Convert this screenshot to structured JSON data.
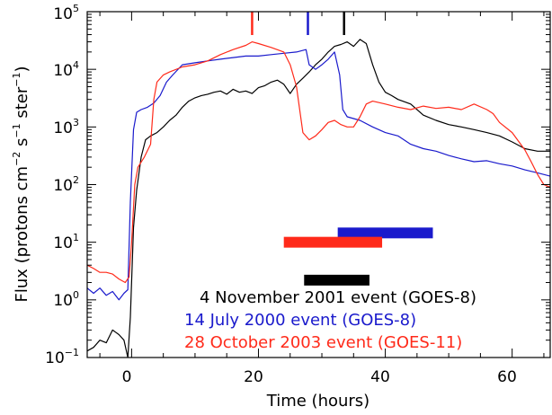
{
  "chart_data": {
    "type": "line",
    "title": "",
    "xlabel": "Time (hours)",
    "ylabel": "Flux (protons cm⁻² s⁻¹ ster⁻¹)",
    "ylabel_parts": {
      "flux": "Flux (protons cm",
      "e1": "−2",
      "s": " s",
      "e2": "−1",
      "ster": " ster",
      "e3": "−1",
      "close": ")"
    },
    "xlim": [
      -7,
      66
    ],
    "ylim": [
      0.1,
      100000
    ],
    "yscale": "log",
    "x_ticks": [
      0,
      20,
      40,
      60
    ],
    "x_tick_labels": [
      "0",
      "20",
      "40",
      "60"
    ],
    "y_ticks": [
      0.1,
      1,
      10,
      100,
      1000,
      10000,
      100000
    ],
    "y_tick_labels": [
      {
        "base": "10",
        "exp": "−1"
      },
      {
        "base": "10",
        "exp": "0"
      },
      {
        "base": "10",
        "exp": "1"
      },
      {
        "base": "10",
        "exp": "2"
      },
      {
        "base": "10",
        "exp": "3"
      },
      {
        "base": "10",
        "exp": "4"
      },
      {
        "base": "10",
        "exp": "5"
      }
    ],
    "legend_placement": "bottom-right",
    "legend": [
      {
        "text": "4 November 2001 event (GOES-8)",
        "color": "#000000"
      },
      {
        "text": "14 July 2000 event (GOES-8)",
        "color": "#1a1acc"
      },
      {
        "text": "28 October 2003 event (GOES-11)",
        "color": "#ff2a1a"
      }
    ],
    "series": [
      {
        "color": "#000000",
        "points": [
          [
            -7,
            0.13
          ],
          [
            -6,
            0.15
          ],
          [
            -5,
            0.2
          ],
          [
            -4,
            0.18
          ],
          [
            -3,
            0.3
          ],
          [
            -2,
            0.25
          ],
          [
            -1.2,
            0.2
          ],
          [
            -0.6,
            0.1
          ],
          [
            -0.2,
            0.5
          ],
          [
            0.3,
            18
          ],
          [
            0.8,
            80
          ],
          [
            1.5,
            300
          ],
          [
            2.2,
            600
          ],
          [
            3,
            700
          ],
          [
            4,
            800
          ],
          [
            5,
            1000
          ],
          [
            6,
            1300
          ],
          [
            7,
            1600
          ],
          [
            8,
            2200
          ],
          [
            9,
            2800
          ],
          [
            10,
            3200
          ],
          [
            11,
            3500
          ],
          [
            12,
            3700
          ],
          [
            13,
            4000
          ],
          [
            14,
            4200
          ],
          [
            15,
            3700
          ],
          [
            16,
            4500
          ],
          [
            17,
            4000
          ],
          [
            18,
            4200
          ],
          [
            19,
            3800
          ],
          [
            20,
            4800
          ],
          [
            21,
            5200
          ],
          [
            22,
            6000
          ],
          [
            23,
            6500
          ],
          [
            24,
            5500
          ],
          [
            25,
            3800
          ],
          [
            26,
            5500
          ],
          [
            27,
            7000
          ],
          [
            28,
            9000
          ],
          [
            29,
            12000
          ],
          [
            30,
            15000
          ],
          [
            31,
            20000
          ],
          [
            32,
            25000
          ],
          [
            33,
            27000
          ],
          [
            34,
            30000
          ],
          [
            35,
            25000
          ],
          [
            36,
            33000
          ],
          [
            37,
            28000
          ],
          [
            38,
            12000
          ],
          [
            39,
            6000
          ],
          [
            40,
            4000
          ],
          [
            41,
            3500
          ],
          [
            42,
            3000
          ],
          [
            44,
            2500
          ],
          [
            46,
            1600
          ],
          [
            48,
            1300
          ],
          [
            50,
            1100
          ],
          [
            52,
            1000
          ],
          [
            54,
            900
          ],
          [
            56,
            800
          ],
          [
            58,
            700
          ],
          [
            60,
            550
          ],
          [
            62,
            420
          ],
          [
            64,
            380
          ],
          [
            66,
            380
          ]
        ]
      },
      {
        "color": "#1a1acc",
        "points": [
          [
            -7,
            1.6
          ],
          [
            -6,
            1.3
          ],
          [
            -5,
            1.6
          ],
          [
            -4,
            1.2
          ],
          [
            -3,
            1.4
          ],
          [
            -2,
            1.0
          ],
          [
            -1.2,
            1.3
          ],
          [
            -0.6,
            1.5
          ],
          [
            -0.2,
            50
          ],
          [
            0.3,
            900
          ],
          [
            0.8,
            1800
          ],
          [
            1.5,
            2000
          ],
          [
            2.5,
            2200
          ],
          [
            3.5,
            2600
          ],
          [
            4.5,
            3500
          ],
          [
            5.5,
            6000
          ],
          [
            6.5,
            8000
          ],
          [
            8,
            12000
          ],
          [
            10,
            13000
          ],
          [
            12,
            14000
          ],
          [
            14,
            15000
          ],
          [
            16,
            16000
          ],
          [
            18,
            17000
          ],
          [
            20,
            17000
          ],
          [
            22,
            18000
          ],
          [
            24,
            19000
          ],
          [
            26,
            20000
          ],
          [
            27.5,
            22000
          ],
          [
            28,
            12000
          ],
          [
            29,
            10000
          ],
          [
            30,
            12000
          ],
          [
            31,
            15000
          ],
          [
            32,
            20000
          ],
          [
            32.8,
            8000
          ],
          [
            33.3,
            2000
          ],
          [
            34,
            1500
          ],
          [
            36,
            1300
          ],
          [
            38,
            1000
          ],
          [
            40,
            800
          ],
          [
            42,
            700
          ],
          [
            44,
            500
          ],
          [
            46,
            420
          ],
          [
            48,
            380
          ],
          [
            50,
            320
          ],
          [
            52,
            280
          ],
          [
            54,
            250
          ],
          [
            56,
            260
          ],
          [
            58,
            230
          ],
          [
            60,
            210
          ],
          [
            62,
            180
          ],
          [
            64,
            160
          ],
          [
            66,
            140
          ]
        ]
      },
      {
        "color": "#ff2a1a",
        "points": [
          [
            -7,
            4
          ],
          [
            -6,
            3.5
          ],
          [
            -5,
            3
          ],
          [
            -4,
            3
          ],
          [
            -3,
            2.8
          ],
          [
            -2,
            2.3
          ],
          [
            -1,
            2
          ],
          [
            -0.4,
            2.5
          ],
          [
            0,
            10
          ],
          [
            0.5,
            100
          ],
          [
            1,
            200
          ],
          [
            2,
            300
          ],
          [
            3,
            500
          ],
          [
            3.5,
            3000
          ],
          [
            4,
            6000
          ],
          [
            5,
            8000
          ],
          [
            6,
            9000
          ],
          [
            8,
            11000
          ],
          [
            10,
            12000
          ],
          [
            12,
            14000
          ],
          [
            14,
            18000
          ],
          [
            16,
            22000
          ],
          [
            18,
            26000
          ],
          [
            19,
            30000
          ],
          [
            20,
            28000
          ],
          [
            22,
            24000
          ],
          [
            24,
            20000
          ],
          [
            25,
            12000
          ],
          [
            26,
            5000
          ],
          [
            27,
            800
          ],
          [
            28,
            600
          ],
          [
            29,
            700
          ],
          [
            30,
            900
          ],
          [
            31,
            1200
          ],
          [
            32,
            1300
          ],
          [
            33,
            1100
          ],
          [
            34,
            1000
          ],
          [
            35,
            1000
          ],
          [
            36,
            1500
          ],
          [
            37,
            2500
          ],
          [
            38,
            2800
          ],
          [
            40,
            2500
          ],
          [
            42,
            2200
          ],
          [
            44,
            2000
          ],
          [
            46,
            2300
          ],
          [
            48,
            2100
          ],
          [
            50,
            2200
          ],
          [
            52,
            2000
          ],
          [
            54,
            2500
          ],
          [
            56,
            2000
          ],
          [
            57,
            1700
          ],
          [
            58,
            1200
          ],
          [
            60,
            800
          ],
          [
            62,
            400
          ],
          [
            63,
            250
          ],
          [
            64,
            150
          ],
          [
            65,
            100
          ],
          [
            66,
            90
          ]
        ]
      }
    ],
    "onset_markers": [
      {
        "x": 19,
        "color": "#ff2a1a"
      },
      {
        "x": 27.8,
        "color": "#1a1acc"
      },
      {
        "x": 33.5,
        "color": "#000000"
      }
    ],
    "bars": [
      {
        "start": 27.2,
        "end": 37.5,
        "y": 2.2,
        "color": "#000000"
      },
      {
        "start": 32.5,
        "end": 47.5,
        "y": 14.5,
        "color": "#1a1acc"
      },
      {
        "start": 24,
        "end": 39.5,
        "y": 10,
        "color": "#ff2a1a"
      }
    ]
  }
}
